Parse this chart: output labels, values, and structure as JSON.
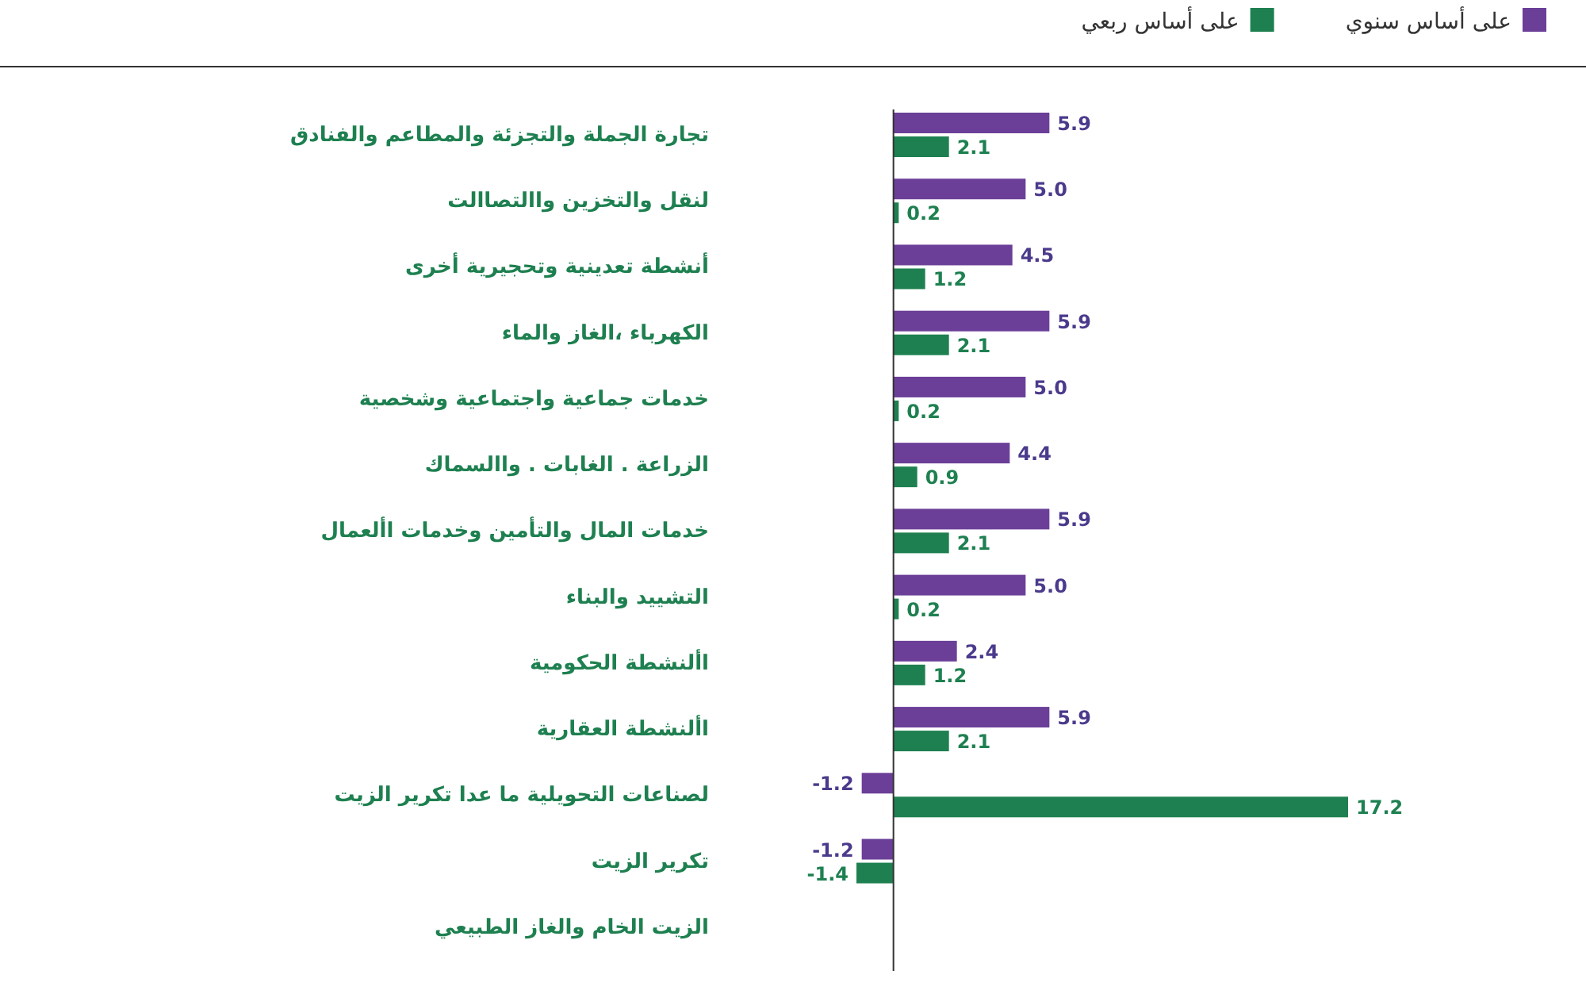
{
  "chart_data": {
    "type": "bar",
    "orientation": "horizontal",
    "categories": [
      "تجارة الجملة والتجزئة والمطاعم والفنادق",
      "لنقل والتخزين واالتصاالت",
      "أنشطة تعدينية وتحجيرية أخرى",
      "الكهرباء ،الغاز والماء",
      "خدمات جماعية واجتماعية وشخصية",
      "الزراعة . الغابات . واالسماك",
      "خدمات المال والتأمين وخدمات األعمال",
      "التشييد والبناء",
      "األنشطة الحكومية",
      "األنشطة العقارية",
      "لصناعات التحويلية ما عدا تكرير الزيت",
      "تكرير الزيت",
      "الزيت الخام والغاز الطبيعي"
    ],
    "series": [
      {
        "name": "على أساس سنوي",
        "color": "#6b3f98",
        "values": [
          5.9,
          5.0,
          4.5,
          5.9,
          5.0,
          4.4,
          5.9,
          5.0,
          2.4,
          5.9,
          -1.2,
          -1.2,
          null
        ],
        "value_labels": [
          "5.9",
          "5.0",
          "4.5",
          "5.9",
          "5.0",
          "4.4",
          "5.9",
          "5.0",
          "2.4",
          "5.9",
          "-1.2",
          "-1.2",
          null
        ]
      },
      {
        "name": "على أساس ربعي",
        "color": "#1e8050",
        "values": [
          2.1,
          0.2,
          1.2,
          2.1,
          0.2,
          0.9,
          2.1,
          0.2,
          1.2,
          2.1,
          17.2,
          -1.4,
          null
        ],
        "value_labels": [
          "2.1",
          "0.2",
          "1.2",
          "2.1",
          "0.2",
          "0.9",
          "2.1",
          "0.2",
          "1.2",
          "2.1",
          "17.2",
          "-1.4",
          null
        ]
      }
    ],
    "legend": "top right"
  }
}
